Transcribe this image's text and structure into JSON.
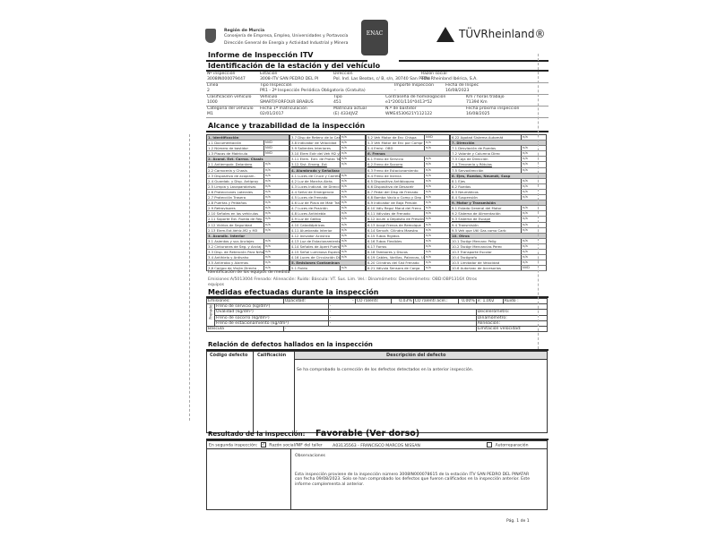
{
  "header": {
    "region_lines": [
      "Región de Murcia",
      "Consejería de Empresa, Empleo, Universidades y Portavocía",
      "Dirección General de Energía y Actividad Industrial y Minera"
    ],
    "enac_logo": "ENAC",
    "tuv_brand": "TÜVRheinland®"
  },
  "title": "Informe de Inspección ITV",
  "identification": {
    "heading": "Identificación de la estación y del vehículo",
    "fields": [
      {
        "label": "Nº inspección",
        "value": "3008IN000079447"
      },
      {
        "label": "Estación",
        "value": "3008-ITV SAN PEDRO DEL PI"
      },
      {
        "label": "Dirección",
        "value": "Pol. Ind. Las Beatas, c/ B, s/n, 30740 San Pedro"
      },
      {
        "label": "Razón social",
        "value": "TÜV Rheinland Ibérica, S.A."
      },
      {
        "label": "Línea",
        "value": "2"
      },
      {
        "label": "Tipo Inspección",
        "value": "PR1 - 2ª Inspección Periódica Obligatoria (Gratuita)"
      },
      {
        "label": "Importe Inspección",
        "value": "-"
      },
      {
        "label": "Fecha de Inspec",
        "value": "16/08/2023"
      },
      {
        "label": "Clasificación vehículo",
        "value": "1000"
      },
      {
        "label": "Vehículo",
        "value": "SMART/FORFOUR BRABUS"
      },
      {
        "label": "Tipo",
        "value": "451"
      },
      {
        "label": "Contraseña de homologación",
        "value": "e1*2001/116*0413*52"
      },
      {
        "label": "Km / horas trabajo",
        "value": "71394 Km"
      },
      {
        "label": "Categoría del vehículo",
        "value": "M1"
      },
      {
        "label": "Fecha 1ª matriculación",
        "value": "02/01/2017"
      },
      {
        "label": "Matrícula actual",
        "value": "(E) 4334JVZ"
      },
      {
        "label": "N.º de bastidor",
        "value": "WME4530621Y112122"
      },
      {
        "label": "Fecha próxima inspección",
        "value": "16/08/2025"
      }
    ]
  },
  "scope": {
    "heading": "Alcance y trazabilidad de la inspección",
    "groups": [
      [
        [
          "1. Identificación",
          "",
          1
        ],
        [
          "1.1 Documentación",
          "NVD"
        ],
        [
          "1.2 Número de bastidor",
          "NVD"
        ],
        [
          "1.3 Placas de Matrícula",
          "NVD"
        ],
        [
          "2. Acond. Ext. Carroc. Chasis",
          "",
          1
        ],
        [
          "2.1 Antiempotr. Delantero",
          "n/a"
        ],
        [
          "2.2 Carrocería y Chasis",
          "n/a"
        ],
        [
          "2.3 Dispositivo de acoplam.",
          "n/a"
        ],
        [
          "2.4 Guardab. y Disp. Antiproy",
          "n/a"
        ],
        [
          "2.5 Limpia y Lavaparabrisas",
          "n/a"
        ],
        [
          "2.6 Protecciones Laterales",
          "n/a"
        ],
        [
          "2.7 Protección Trasera",
          "n/a"
        ],
        [
          "2.8 Puertas y Peldaños",
          "n/a"
        ],
        [
          "2.9 Retrovisores",
          "n/a"
        ],
        [
          "2.10 Señales en los vehículos",
          "n/a"
        ],
        [
          "2.11 Soporte Ext. Rueda de Rep",
          "n/a"
        ],
        [
          "2.12 Vidrios de Seguridad",
          "n/a"
        ],
        [
          "2.13 Elem.Ext.Vehíc.M2 y M3",
          "n/a"
        ],
        [
          "3. Acondic. Interior",
          "",
          1
        ],
        [
          "3.1 Asientos y sus Anclajes",
          "n/a"
        ],
        [
          "3.2 Cinturones de Seg. y Anclaj",
          "n/a"
        ],
        [
          "3.3 Disp. de Retención Para Niños",
          "n/a"
        ],
        [
          "3.4 Antihielo y Antivaho",
          "n/a"
        ],
        [
          "3.5 Antirrobo y Alarmas",
          "n/a"
        ],
        [
          "3.6 Campo de Visión Directa",
          "n/a"
        ]
      ],
      [
        [
          "3.7 Disp de Retenc de la Carga",
          "n/a"
        ],
        [
          "3.8 Indicador de Velocidad",
          "n/a"
        ],
        [
          "3.9 Salientes Interiores",
          "n/a"
        ],
        [
          "3.10 Elem Extr del Veh M2 y M3",
          "n/a"
        ],
        [
          "3.11 Elem. Extr. de Protec Tacóg",
          "n/a"
        ],
        [
          "3.12 Sist. Emerg. Ext",
          "n/a"
        ],
        [
          "4. Alumbrado y Señalización",
          "",
          1
        ],
        [
          "4.1 Luces de Cruce y Carretera",
          "n/a"
        ],
        [
          "4.2 Luz de Marcha Atrás",
          "n/a"
        ],
        [
          "4.3 Luces Indicad. de Dirección",
          "n/a"
        ],
        [
          "4.4 Señal de Emergencia",
          "n/a"
        ],
        [
          "4.5 Luces de Frenado",
          "n/a"
        ],
        [
          "4.6 Luz de Placa de Matr Tras",
          "n/a"
        ],
        [
          "4.7 Luces de Posición",
          "n/a"
        ],
        [
          "4.8 Luces Antiniebla",
          "n/a"
        ],
        [
          "4.9 Luz de Gálibo",
          "n/a"
        ],
        [
          "4.10 Catadióptricos",
          "n/a"
        ],
        [
          "4.11 Alumbrado Interior",
          "n/a"
        ],
        [
          "4.12 Avisador Acústico",
          "n/a"
        ],
        [
          "4.13 Luz de Estacionamiento",
          "n/a"
        ],
        [
          "4.14 Señales de Apert Puertas",
          "n/a"
        ],
        [
          "4.15 Señal Luminosa Especial",
          "n/a"
        ],
        [
          "4.16 Luces de Circulación Diurna",
          "n/a"
        ],
        [
          "5. Emisiones Contaminantes",
          "",
          1
        ],
        [
          "5.1 Ruido",
          "n/a"
        ]
      ],
      [
        [
          "5.2 Veh Motor de Enc Chispa",
          "NVD"
        ],
        [
          "5.3 Veh Motor de Enc por Compr",
          "n/a"
        ],
        [
          "5.4 Emisi. OBD",
          "n/a"
        ],
        [
          "6. Frenos",
          "",
          1
        ],
        [
          "6.1 Freno de Servicio",
          "n/a"
        ],
        [
          "6.2 Freno de Socorro",
          "n/a"
        ],
        [
          "6.3 Freno de Estacionamiento",
          "n/a"
        ],
        [
          "6.4 Freno de Inercia",
          "n/a"
        ],
        [
          "6.5 Dispositivo Antibloqueo",
          "n/a"
        ],
        [
          "6.6 Dispositivo de Desacelr",
          "n/a"
        ],
        [
          "6.7 Pedal del Disp de Frenado",
          "n/a"
        ],
        [
          "6.8 Bomba Vacío o Comp y Dep",
          "n/a"
        ],
        [
          "6.9 Indicador de Baja Presión",
          "n/a"
        ],
        [
          "6.10 Válv Regul Mand del Freno",
          "n/a"
        ],
        [
          "6.11 Válvulas de Frenado",
          "n/a"
        ],
        [
          "6.12 Acum o Depósito de Presión",
          "n/a"
        ],
        [
          "6.13 Acopl Frenos de Remolque",
          "n/a"
        ],
        [
          "6.14 Servofr. Cilindro Maestro",
          "n/a"
        ],
        [
          "6.15 Tubos Rígidos",
          "n/a"
        ],
        [
          "6.16 Tubos Flexibles",
          "n/a"
        ],
        [
          "6.17 Forros",
          "n/a"
        ],
        [
          "6.18 Tambores y Discos",
          "n/a"
        ],
        [
          "6.19 Cables, Varillas, Palancas, Uniones",
          "n/a"
        ],
        [
          "6.20 Cilindros del Sist Frenado",
          "n/a"
        ],
        [
          "6.21 Válvula Sensora de Carga",
          "n/a"
        ]
      ],
      [
        [
          "6.22 Agotad Sistema Automát",
          "n/a"
        ],
        [
          "7. Dirección",
          "",
          1
        ],
        [
          "7.1 Desviación de Ruedas",
          "n/a"
        ],
        [
          "7.2 Volante y Columna Direc",
          "n/a"
        ],
        [
          "7.3 Caja de Dirección",
          "n/a"
        ],
        [
          "7.4 Timonería y Rótulas",
          "n/a"
        ],
        [
          "7.5 Servodirección",
          "n/a"
        ],
        [
          "8. Ejes, Ruedas, Neumát, Susp",
          "",
          1
        ],
        [
          "8.1 Ejes",
          "n/a"
        ],
        [
          "8.2 Ruedas",
          "n/a"
        ],
        [
          "8.3 Neumáticos",
          "n/a"
        ],
        [
          "8.4 Suspensión",
          "n/a"
        ],
        [
          "9. Motor y Transmisión",
          "",
          1
        ],
        [
          "9.1 Estado General del Motor",
          "n/a"
        ],
        [
          "9.2 Sistema de Alimentación",
          "n/a"
        ],
        [
          "9.3 Sistema de Escape",
          "n/a"
        ],
        [
          "9.4 Transmisión",
          "n/a"
        ],
        [
          "9.5 Veh que Util Gas como Carb",
          "n/a"
        ],
        [
          "10. Otros",
          "",
          1
        ],
        [
          "10.1 Tacógr Mercanc Pelig",
          "n/a"
        ],
        [
          "10.2 Tacógr Mercancías Perec",
          "n/a"
        ],
        [
          "10.3 Transporte Escolar",
          "n/a"
        ],
        [
          "10.4 Tacógrafo",
          "n/a"
        ],
        [
          "10.5 Limitador de Velocidad",
          "n/a"
        ],
        [
          "10.6 Autorizac de Accesorios",
          "NVD"
        ]
      ]
    ]
  },
  "equipment": {
    "heading": "Identificación de los equipos de medida",
    "text": "Emisiones:A/5013004   Frenado:   Alineación:   Ruido:   Báscula:   VT. Sus. Lim. Vel.:   Dinamómetro:   Decelerómetro:   OBD:OBP1316X   Otros",
    "text2": "equipos"
  },
  "measures": {
    "heading": "Medidas efectuadas durante la inspección",
    "emisiones": "Emisiones:",
    "opacidad": "Opacidad:",
    "dash": "-",
    "co": "CO ralentí:",
    "co_val": "0,03%",
    "co_acel": "CO ralentí acel.:",
    "co_acel_val": "0,00%",
    "lambda": "λ: 1,002",
    "ruido": "Ruido :",
    "frenado": "Frenado",
    "brakes": [
      "Freno de servicio  (kg/dm²)",
      "Ovalidad (kg/dm²)",
      "Freno de socorro (kg/dm²)",
      "Freno de estacionamiento (kg/dm²)"
    ],
    "right": [
      "Decelerómetro:",
      "Dinamómetro:",
      "Alineación:",
      "Limitación velocidad:"
    ],
    "bascula": "Báscula"
  },
  "defects": {
    "heading": "Relación de defectos hallados en la inspección",
    "col_code": "Código defecto",
    "col_rating": "Calificación",
    "col_desc": "Descripción del defecto",
    "desc": "Se ha comprobado la corrección de los defectos detectados en la anterior inspección."
  },
  "result": {
    "label": "Resultado de la inspección:",
    "value": "Favorable (Ver dorso)",
    "second": "En segunda inspección:",
    "workshop_label": "Razón social/NIF del taller",
    "workshop": "A03135563 - FRANCISCO MARCOS NISSAN",
    "self_repair": "Autorreparación",
    "workshop_checked": true,
    "self_repair_checked": false,
    "obs_label": "Observaciones",
    "obs": "Esta inspección proviene de la inspección número 3008IN000078615 de la estación ITV SAN PEDRO DEL PINATAR con fecha 09/08/2023. Solo se han comprobado los defectos que fueron calificados en la inspección anterior. Este informe complementa al anterior."
  },
  "page": "Pág. 1 de 1"
}
